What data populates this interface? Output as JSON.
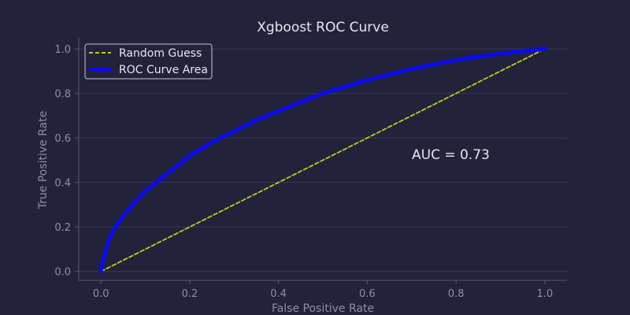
{
  "chart_data": {
    "type": "line",
    "title": "Xgboost ROC Curve",
    "xlabel": "False Positive Rate",
    "ylabel": "True Positive Rate",
    "xlim": [
      -0.05,
      1.05
    ],
    "ylim": [
      -0.04,
      1.05
    ],
    "xticks": [
      0.0,
      0.2,
      0.4,
      0.6,
      0.8,
      1.0
    ],
    "yticks": [
      0.0,
      0.2,
      0.4,
      0.6,
      0.8,
      1.0
    ],
    "xtick_labels": [
      "0.0",
      "0.2",
      "0.4",
      "0.6",
      "0.8",
      "1.0"
    ],
    "ytick_labels": [
      "0.0",
      "0.2",
      "0.4",
      "0.6",
      "0.8",
      "1.0"
    ],
    "grid": "horizontal",
    "legend_position": "top-left",
    "annotation": "AUC = 0.73",
    "series": [
      {
        "name": "Random Guess",
        "style": "dashed",
        "color": "#c8c81e",
        "x": [
          0,
          1
        ],
        "y": [
          0,
          1
        ]
      },
      {
        "name": "ROC Curve Area",
        "style": "solid",
        "color": "#0a0af0",
        "x": [
          0,
          0.005,
          0.01,
          0.02,
          0.03,
          0.05,
          0.08,
          0.1,
          0.15,
          0.2,
          0.25,
          0.3,
          0.35,
          0.4,
          0.45,
          0.5,
          0.55,
          0.6,
          0.65,
          0.7,
          0.75,
          0.8,
          0.85,
          0.9,
          0.95,
          1.0
        ],
        "y": [
          0,
          0.05,
          0.09,
          0.15,
          0.19,
          0.25,
          0.32,
          0.36,
          0.44,
          0.52,
          0.58,
          0.63,
          0.68,
          0.72,
          0.76,
          0.8,
          0.83,
          0.86,
          0.885,
          0.91,
          0.93,
          0.95,
          0.965,
          0.978,
          0.99,
          1.0
        ]
      }
    ]
  },
  "colors": {
    "background": "#22223a",
    "grid": "#3a3a55",
    "axis": "#55556e",
    "text": "#e6e6f2",
    "muted_text": "#8e8ea8"
  }
}
